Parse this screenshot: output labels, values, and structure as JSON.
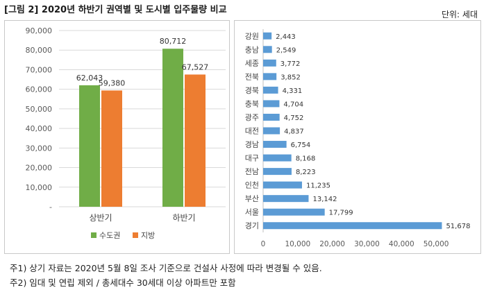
{
  "header": {
    "title": "[그림 2] 2020년 하반기 권역별 및 도시별 입주물량 비교",
    "unit": "단위: 세대"
  },
  "notes": [
    "주1) 상기 자료는 2020년 5월 8일 조사 기준으로 건설사 사정에 따라 변경될 수 있음.",
    "주2) 임대 및 연립 제외 / 총세대수 30세대 이상 아파트만 포함"
  ],
  "colors": {
    "metro": "#70ad47",
    "local": "#ed7d31",
    "city_bar": "#5b9bd5",
    "grid": "#d9d9d9",
    "axis_text": "#595959"
  },
  "chart_data": [
    {
      "type": "bar",
      "categories": [
        "상반기",
        "하반기"
      ],
      "series": [
        {
          "name": "수도권",
          "values": [
            62043,
            80712
          ],
          "labels": [
            "62,043",
            "80,712"
          ]
        },
        {
          "name": "지방",
          "values": [
            59380,
            67527
          ],
          "labels": [
            "59,380",
            "67,527"
          ]
        }
      ],
      "ylim": [
        0,
        90000
      ],
      "yticks": [
        0,
        10000,
        20000,
        30000,
        40000,
        50000,
        60000,
        70000,
        80000,
        90000
      ],
      "ytick_labels": [
        "-",
        "10,000",
        "20,000",
        "30,000",
        "40,000",
        "50,000",
        "60,000",
        "70,000",
        "80,000",
        "90,000"
      ],
      "grid": true,
      "legend": "bottom"
    },
    {
      "type": "bar",
      "orientation": "horizontal",
      "categories": [
        "강원",
        "충남",
        "세종",
        "전북",
        "경북",
        "충북",
        "광주",
        "대전",
        "경남",
        "대구",
        "전남",
        "인천",
        "부산",
        "서울",
        "경기"
      ],
      "values": [
        2443,
        2549,
        3772,
        3852,
        4331,
        4704,
        4752,
        4837,
        6754,
        8168,
        8223,
        11235,
        13142,
        17799,
        51678
      ],
      "value_labels": [
        "2,443",
        "2,549",
        "3,772",
        "3,852",
        "4,331",
        "4,704",
        "4,752",
        "4,837",
        "6,754",
        "8,168",
        "8,223",
        "11,235",
        "13,142",
        "17,799",
        "51,678"
      ],
      "xlim": [
        0,
        55000
      ],
      "xticks": [
        0,
        10000,
        20000,
        30000,
        40000,
        50000
      ],
      "xtick_labels": [
        "0",
        "10,000",
        "20,000",
        "30,000",
        "40,000",
        "50,000"
      ],
      "grid": false
    }
  ]
}
